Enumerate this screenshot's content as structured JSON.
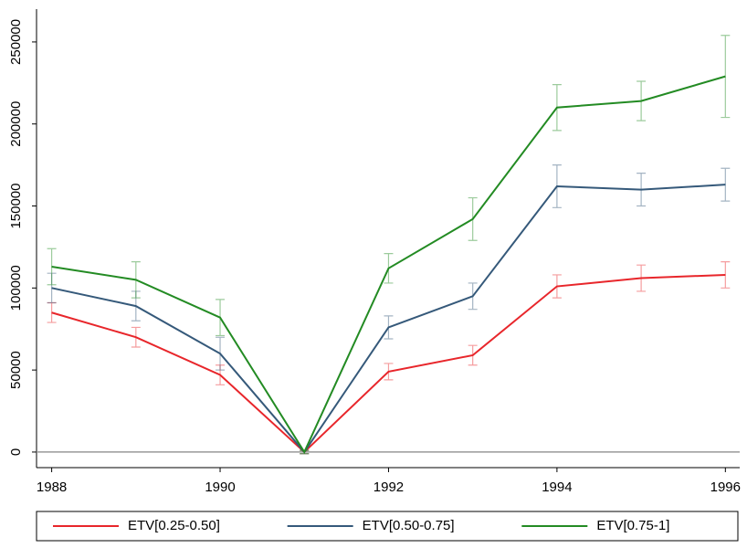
{
  "chart_data": {
    "type": "line",
    "x": [
      1988,
      1989,
      1990,
      1991,
      1992,
      1993,
      1994,
      1995,
      1996
    ],
    "series": [
      {
        "name": "ETV[0.25-0.50]",
        "color": "#e8262b",
        "values": [
          85000,
          70000,
          47000,
          0,
          49000,
          59000,
          101000,
          106000,
          108000
        ],
        "errors": [
          6000,
          6000,
          6000,
          1000,
          5000,
          6000,
          7000,
          8000,
          8000
        ]
      },
      {
        "name": "ETV[0.50-0.75]",
        "color": "#35597a",
        "values": [
          100000,
          89000,
          60000,
          0,
          76000,
          95000,
          162000,
          160000,
          163000
        ],
        "errors": [
          9000,
          9000,
          10000,
          1000,
          7000,
          8000,
          13000,
          10000,
          10000
        ]
      },
      {
        "name": "ETV[0.75-1]",
        "color": "#238b23",
        "values": [
          113000,
          105000,
          82000,
          0,
          112000,
          142000,
          210000,
          214000,
          229000
        ],
        "errors": [
          11000,
          11000,
          11000,
          1000,
          9000,
          13000,
          14000,
          12000,
          25000
        ]
      }
    ],
    "xlim": [
      1987.82,
      1996.17
    ],
    "xticks": [
      1988,
      1990,
      1992,
      1994,
      1996
    ],
    "ylim": [
      -9500,
      270000
    ],
    "yticks": [
      0,
      50000,
      100000,
      150000,
      200000,
      250000
    ],
    "reference_line": 0,
    "legend": "bottom"
  }
}
